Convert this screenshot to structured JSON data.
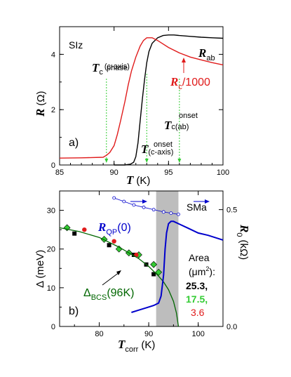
{
  "chart_data": [
    {
      "type": "line",
      "panel_label": "a)",
      "sample_label": "SIz",
      "xlabel": "T",
      "xlabel_unit": "(K)",
      "ylabel": "R",
      "ylabel_unit": "(Ω)",
      "xlim": [
        85,
        100
      ],
      "ylim": [
        0,
        5
      ],
      "xticks": [
        85,
        90,
        95,
        100
      ],
      "yticks": [
        0,
        2,
        4
      ],
      "series": [
        {
          "name": "R_ab",
          "color": "#000000",
          "x": [
            90.0,
            91.0,
            91.5,
            91.8,
            92.0,
            92.2,
            92.4,
            92.6,
            92.8,
            93.0,
            93.2,
            93.5,
            94.0,
            94.5,
            95.0,
            95.5,
            96.0,
            97.0,
            98.0,
            99.0,
            100.0
          ],
          "y": [
            0.0,
            0.0,
            0.03,
            0.1,
            0.3,
            0.8,
            1.6,
            2.4,
            3.1,
            3.7,
            4.1,
            4.4,
            4.6,
            4.68,
            4.7,
            4.7,
            4.68,
            4.65,
            4.62,
            4.6,
            4.58
          ]
        },
        {
          "name": "R_c/1000",
          "color": "#e01b1b",
          "x": [
            85.0,
            87.0,
            89.0,
            89.3,
            89.6,
            90.0,
            90.3,
            90.6,
            91.0,
            91.3,
            91.6,
            92.0,
            92.4,
            92.7,
            93.0,
            93.5,
            94.0,
            95.0,
            96.0,
            97.0,
            98.0,
            99.0,
            100.0
          ],
          "y": [
            0.25,
            0.26,
            0.28,
            0.35,
            0.45,
            0.7,
            1.1,
            1.6,
            2.3,
            2.9,
            3.4,
            3.9,
            4.3,
            4.5,
            4.6,
            4.6,
            4.5,
            4.25,
            4.05,
            3.9,
            3.8,
            3.7,
            3.62
          ]
        }
      ],
      "annotations": {
        "rab_main": "R",
        "rab_sub": "ab",
        "rc_main": "R",
        "rc_sub": "c",
        "rc_tail": "/1000",
        "tphase_main": "T",
        "tphase_sub": "c",
        "tphase_sup": "phase",
        "tphase_extra": "(c-axis)",
        "tonset_ab_main": "T",
        "tonset_ab_sub": "c(ab)",
        "tonset_ab_sup": "onset",
        "tonset_c_main": "T",
        "tonset_c_sub": "(c-axis)",
        "tonset_c_sup": "onset"
      },
      "vlines": [
        89.3,
        93.0,
        96.0
      ]
    },
    {
      "type": "scatter",
      "panel_label": "b)",
      "sample_label": "SMa",
      "xlabel": "T",
      "xlabel_sub": "corr",
      "xlabel_unit": "(K)",
      "ylabel": "Δ (meV)",
      "ylabel_right": "R",
      "ylabel_right_sub": "0",
      "ylabel_right_unit": "(kΩ)",
      "xlim": [
        72,
        105
      ],
      "ylim": [
        0,
        35
      ],
      "y2lim": [
        0,
        0.58
      ],
      "xticks": [
        80,
        90,
        100
      ],
      "yticks": [
        0,
        10,
        20,
        30
      ],
      "y2ticks": [
        "0.0",
        "0.5"
      ],
      "shaded_region": [
        91.5,
        96
      ],
      "series": [
        {
          "name": "25.3",
          "marker": "square",
          "color": "#000000",
          "x": [
            75,
            82,
            87,
            89.5,
            91
          ],
          "y": [
            24,
            21,
            18.5,
            16,
            13.5
          ]
        },
        {
          "name": "17.5",
          "marker": "diamond",
          "color": "#33cc33",
          "x": [
            73.5,
            81,
            84,
            86,
            88,
            91,
            92
          ],
          "y": [
            25.5,
            22.5,
            20,
            19,
            18.5,
            16,
            14
          ]
        },
        {
          "name": "3.6",
          "marker": "circle",
          "color": "#e01b1b",
          "x": [
            77,
            83,
            87.5
          ],
          "y": [
            25,
            22,
            18.5
          ]
        },
        {
          "name": "Δ_BCS(96K)",
          "type": "line",
          "color": "#006600",
          "x": [
            72,
            76,
            80,
            84,
            88,
            90,
            92,
            93,
            94,
            95,
            95.6,
            96
          ],
          "y": [
            25.5,
            24.5,
            23,
            20.5,
            17.5,
            15.5,
            13,
            11.5,
            9.5,
            6.5,
            3.5,
            0
          ]
        },
        {
          "name": "R0",
          "type": "line",
          "axis": "right",
          "color": "#0000cc",
          "x": [
            86.5,
            88,
            89.5,
            91,
            92,
            92.5,
            93,
            93.3,
            93.6,
            94,
            94.5,
            95,
            96,
            98,
            100,
            102,
            105
          ],
          "y": [
            0.06,
            0.07,
            0.08,
            0.09,
            0.1,
            0.13,
            0.22,
            0.33,
            0.4,
            0.44,
            0.45,
            0.45,
            0.44,
            0.42,
            0.4,
            0.39,
            0.37
          ]
        },
        {
          "name": "R_QP(0)",
          "type": "line",
          "axis": "right",
          "marker": "open-circle",
          "color": "#0000cc",
          "x": [
            83,
            85,
            87,
            89,
            91,
            93,
            94.5,
            96
          ],
          "y": [
            0.55,
            0.535,
            0.52,
            0.51,
            0.5,
            0.49,
            0.485,
            0.48
          ]
        }
      ],
      "annotations": {
        "delta_bcs_main": "Δ",
        "delta_bcs_sub": "BCS",
        "delta_bcs_tail": "(96K)",
        "rqp_main": "R",
        "rqp_sub": "QP",
        "rqp_tail": "(0)",
        "area_title_1": "Area",
        "area_title_2": "(μm",
        "area_title_sup": "2",
        "area_title_3": "):",
        "area_1": "25.3,",
        "area_2": "17.5,",
        "area_3": "3.6"
      }
    }
  ]
}
